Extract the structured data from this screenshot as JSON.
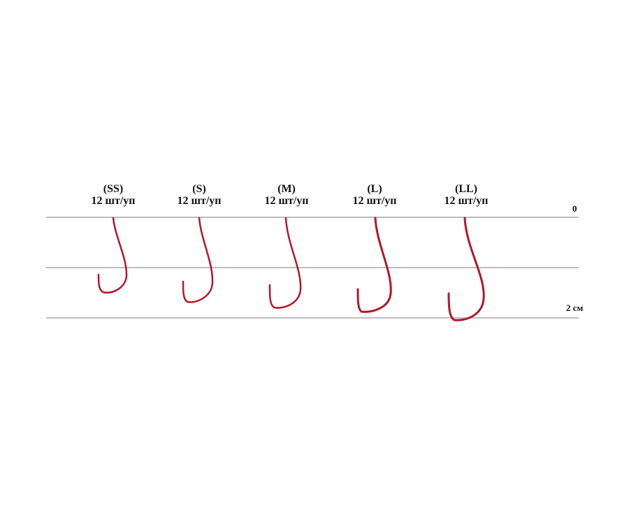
{
  "hooks": [
    {
      "size": "(SS)",
      "count": "12 шт/уп"
    },
    {
      "size": "(S)",
      "count": "12 шт/уп"
    },
    {
      "size": "(M)",
      "count": "12 шт/уп"
    },
    {
      "size": "(L)",
      "count": "12 шт/уп"
    },
    {
      "size": "(LL)",
      "count": "12 шт/уп"
    }
  ],
  "scale": {
    "top": "0",
    "bottom": "2 см"
  },
  "colors": {
    "hook": "#b0182a",
    "line": "#bdbdbd"
  }
}
